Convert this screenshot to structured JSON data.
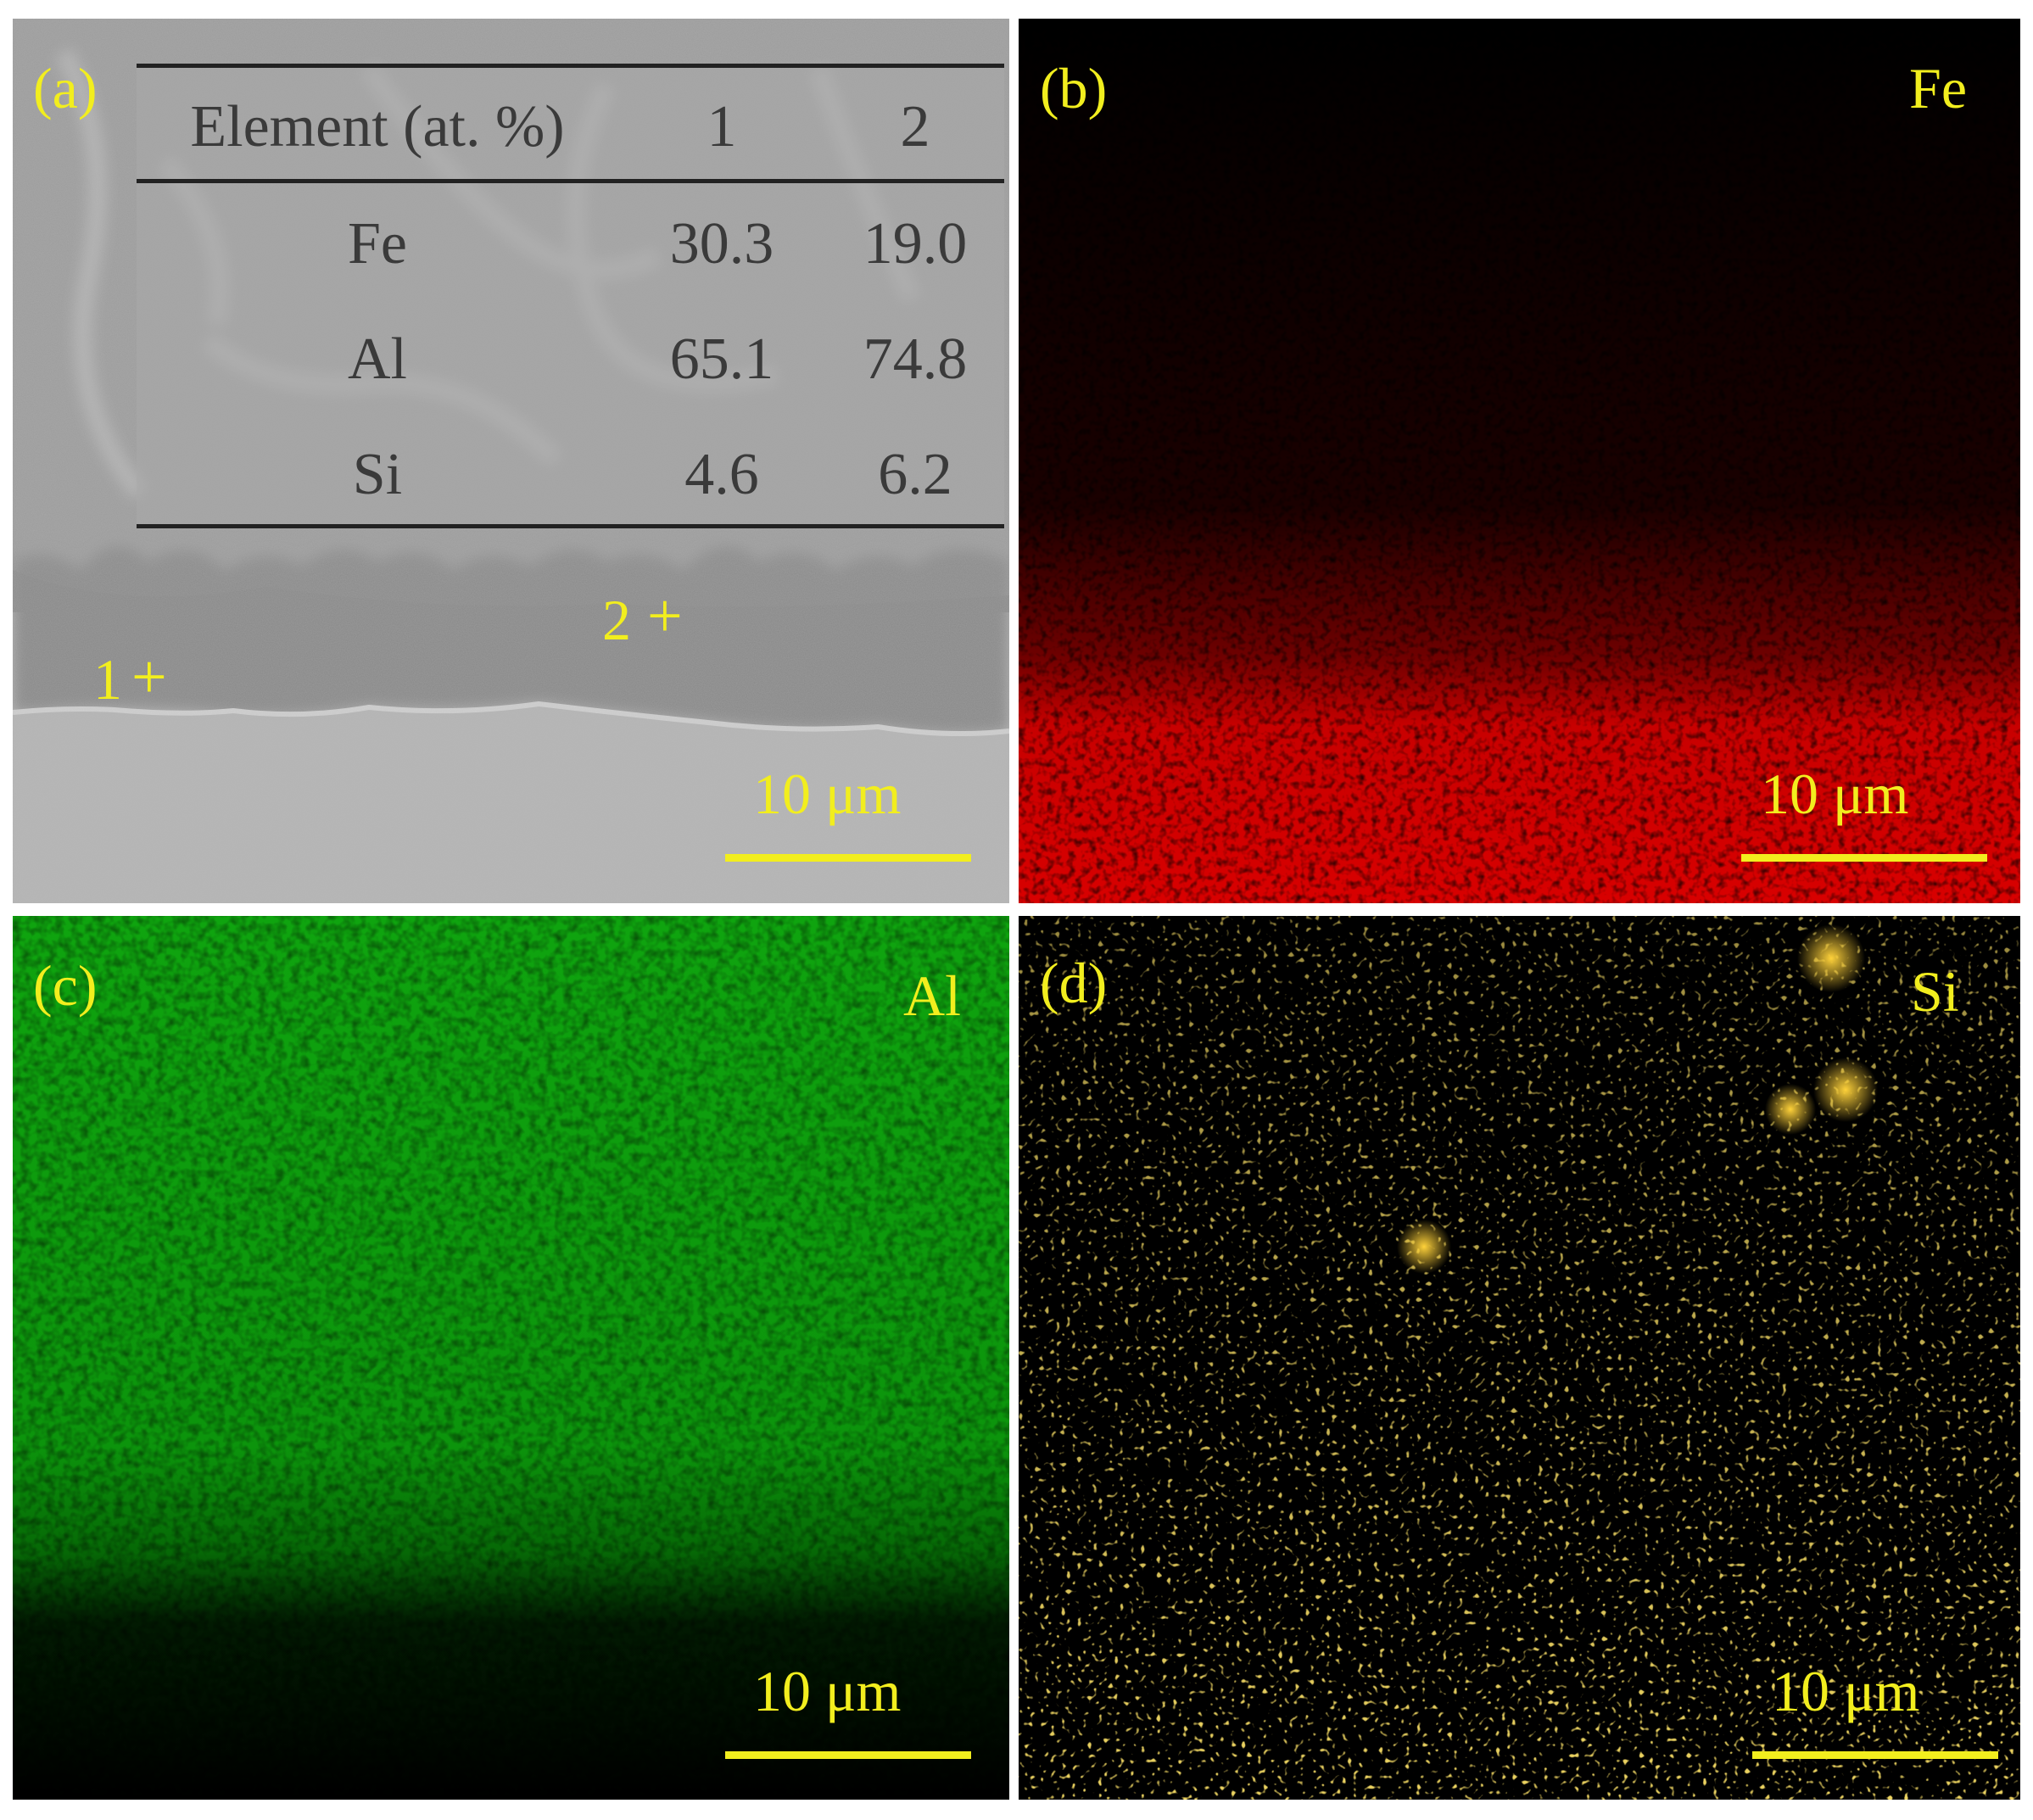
{
  "figure": {
    "panels": [
      {
        "id": "a",
        "label": "(a)",
        "scale_bar": "10 μm",
        "points": [
          "1",
          "2"
        ],
        "table": {
          "header": [
            "Element (at. %)",
            "1",
            "2"
          ],
          "rows": [
            [
              "Fe",
              "30.3",
              "19.0"
            ],
            [
              "Al",
              "65.1",
              "74.8"
            ],
            [
              "Si",
              "4.6",
              "6.2"
            ]
          ]
        }
      },
      {
        "id": "b",
        "label": "(b)",
        "element": "Fe",
        "scale_bar": "10 μm",
        "map_color": "#e00000"
      },
      {
        "id": "c",
        "label": "(c)",
        "element": "Al",
        "scale_bar": "10 μm",
        "map_color": "#18b818"
      },
      {
        "id": "d",
        "label": "(d)",
        "element": "Si",
        "scale_bar": "10 μm",
        "map_color": "#d9a81e"
      }
    ],
    "annotation_color": "#f2ee1e"
  }
}
